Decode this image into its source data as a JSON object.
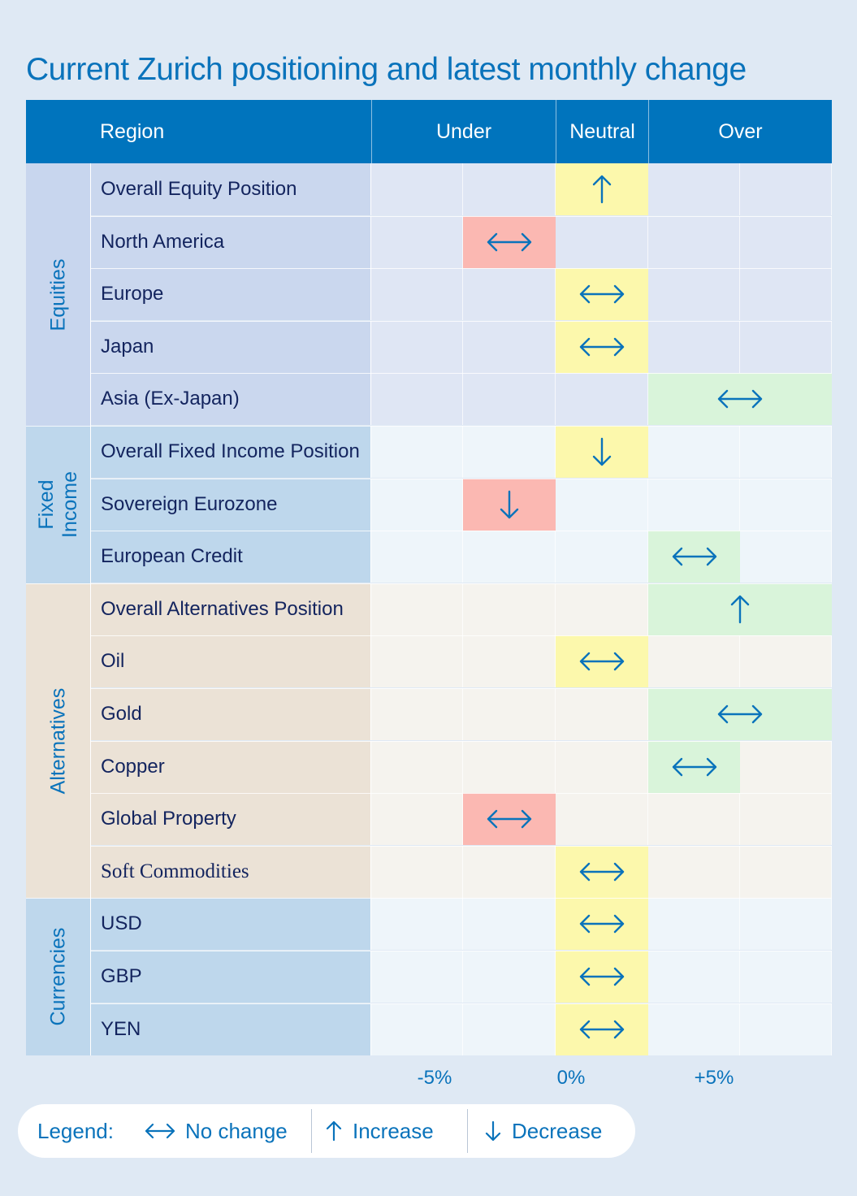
{
  "title": "Current Zurich positioning and latest monthly change",
  "header": {
    "region": "Region",
    "under": "Under",
    "neutral": "Neutral",
    "over": "Over"
  },
  "colors": {
    "header_bg": "#0074bd",
    "accent": "#0a73bb",
    "label_text": "#13245e",
    "under_fill": "#fbb8b2",
    "neutral_fill": "#fcf8ac",
    "over_fill": "#d9f4da"
  },
  "sections": [
    {
      "label": "Equities",
      "cat_bg": "#c8d6ee",
      "label_bg": "#cad7ee",
      "cell_bg": "#dfe6f4",
      "rows": [
        {
          "label": "Overall Equity Position",
          "position": "neutral",
          "change": "increase"
        },
        {
          "label": "North America",
          "position": "under",
          "change": "no-change"
        },
        {
          "label": "Europe",
          "position": "neutral",
          "change": "no-change"
        },
        {
          "label": "Japan",
          "position": "neutral",
          "change": "no-change"
        },
        {
          "label": "Asia (Ex-Japan)",
          "position": "over-full",
          "change": "no-change"
        }
      ]
    },
    {
      "label": "Fixed\nIncome",
      "cat_bg": "#bed7ec",
      "label_bg": "#bed7ec",
      "cell_bg": "#eef5fa",
      "rows": [
        {
          "label": "Overall Fixed Income Position",
          "position": "neutral",
          "change": "decrease"
        },
        {
          "label": "Sovereign Eurozone",
          "position": "under",
          "change": "decrease"
        },
        {
          "label": "European Credit",
          "position": "over",
          "change": "no-change"
        }
      ]
    },
    {
      "label": "Alternatives",
      "cat_bg": "#ebe2d6",
      "label_bg": "#ebe2d6",
      "cell_bg": "#f5f3ee",
      "rows": [
        {
          "label": "Overall Alternatives Position",
          "position": "over-full",
          "change": "increase"
        },
        {
          "label": "Oil",
          "position": "neutral",
          "change": "no-change"
        },
        {
          "label": "Gold",
          "position": "over-full",
          "change": "no-change"
        },
        {
          "label": "Copper",
          "position": "over",
          "change": "no-change"
        },
        {
          "label": "Global Property",
          "position": "under",
          "change": "no-change"
        },
        {
          "label": "Soft Commodities",
          "position": "neutral",
          "change": "no-change",
          "serif": true
        }
      ]
    },
    {
      "label": "Currencies",
      "cat_bg": "#bed7ec",
      "label_bg": "#bed7ec",
      "cell_bg": "#eef5fa",
      "rows": [
        {
          "label": "USD",
          "position": "neutral",
          "change": "no-change"
        },
        {
          "label": "GBP",
          "position": "neutral",
          "change": "no-change"
        },
        {
          "label": "YEN",
          "position": "neutral",
          "change": "no-change"
        }
      ]
    }
  ],
  "axis": {
    "minus": "-5%",
    "zero": "0%",
    "plus": "+5%"
  },
  "legend": {
    "title": "Legend:",
    "no_change": "No change",
    "increase": "Increase",
    "decrease": "Decrease"
  }
}
